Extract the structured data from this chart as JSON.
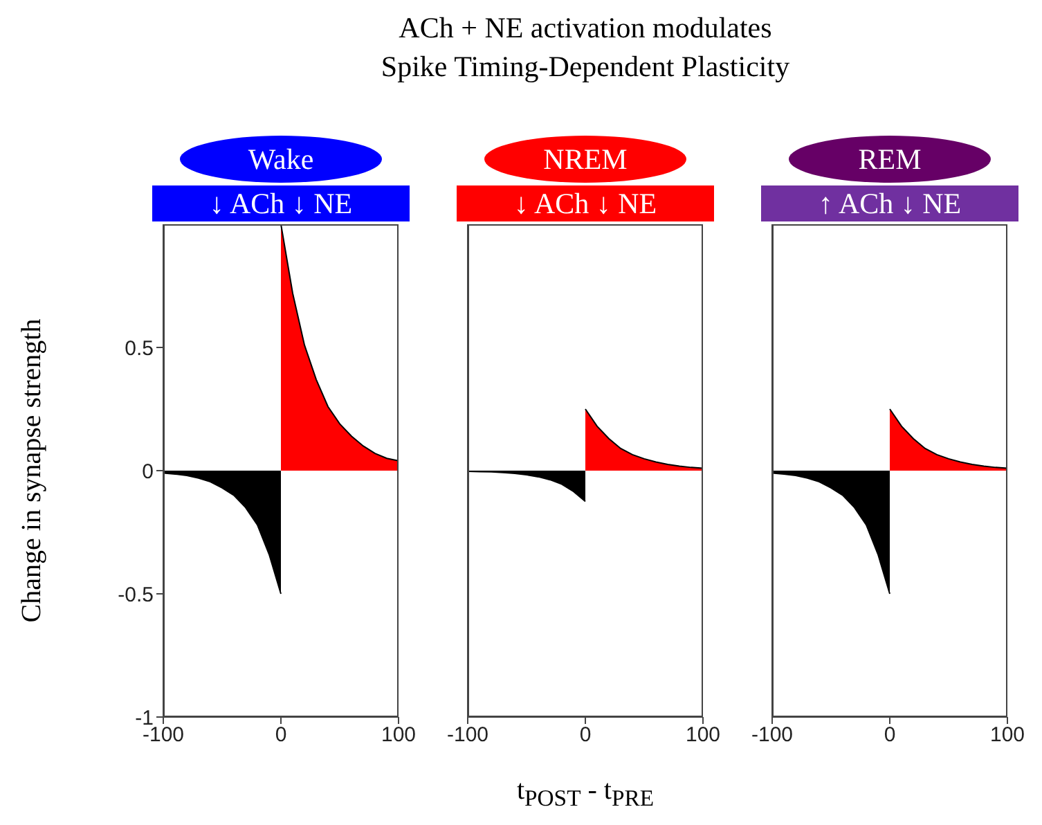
{
  "chart_data": [
    {
      "type": "area",
      "title": "Wake",
      "subtitle": "↓ ACh ↓ NE",
      "ylabel": "Change in synapse strength",
      "annotations": [
        "ACh + NE activation modulates",
        "Spike Timing-Dependent Plasticity"
      ],
      "xlim": [
        -100,
        100
      ],
      "xticks": [
        -100,
        0,
        100
      ],
      "ylim": [
        -1,
        1
      ],
      "yticks": [
        -1,
        -0.5,
        0,
        0.5
      ],
      "series": [
        {
          "color": "#ff0000",
          "x": [
            0,
            10,
            20,
            30,
            40,
            50,
            60,
            70,
            80,
            90,
            100
          ],
          "values": [
            1,
            0.72,
            0.51,
            0.37,
            0.26,
            0.19,
            0.14,
            0.1,
            0.07,
            0.05,
            0.04
          ]
        },
        {
          "color": "#000000",
          "x": [
            -100,
            -90,
            -80,
            -70,
            -60,
            -50,
            -40,
            -30,
            -20,
            -10,
            0
          ],
          "values": [
            -0.01,
            -0.014,
            -0.02,
            -0.03,
            -0.045,
            -0.07,
            -0.1,
            -0.15,
            -0.22,
            -0.34,
            -0.5
          ]
        }
      ]
    },
    {
      "type": "area",
      "title": "NREM",
      "subtitle": "↓ ACh ↓ NE",
      "xlabel": "t$_{POST}$ - t$_{PRE}$",
      "tick_labels": "x",
      "xlim": [
        -100,
        100
      ],
      "xticks": [
        -100,
        0,
        100
      ],
      "ylim": [
        -1,
        1
      ],
      "yticks": [
        -1,
        -0.5,
        0,
        0.5
      ],
      "series": [
        {
          "color": "#ff0000",
          "x": [
            0,
            10,
            20,
            30,
            40,
            50,
            60,
            70,
            80,
            90,
            100
          ],
          "values": [
            0.25,
            0.18,
            0.13,
            0.09,
            0.065,
            0.048,
            0.035,
            0.025,
            0.018,
            0.013,
            0.01
          ]
        },
        {
          "color": "#000000",
          "x": [
            -100,
            -90,
            -80,
            -70,
            -60,
            -50,
            -40,
            -30,
            -20,
            -10,
            0
          ],
          "values": [
            -0.003,
            -0.004,
            -0.005,
            -0.008,
            -0.011,
            -0.017,
            -0.025,
            -0.037,
            -0.055,
            -0.085,
            -0.125
          ]
        }
      ]
    },
    {
      "type": "area",
      "title": "REM",
      "subtitle": "↑ ACh ↓ NE",
      "tick_labels": "x",
      "xlim": [
        -100,
        100
      ],
      "xticks": [
        -100,
        0,
        100
      ],
      "ylim": [
        -1,
        1
      ],
      "yticks": [
        -1,
        -0.5,
        0,
        0.5
      ],
      "series": [
        {
          "color": "#ff0000",
          "x": [
            0,
            10,
            20,
            30,
            40,
            50,
            60,
            70,
            80,
            90,
            100
          ],
          "values": [
            0.25,
            0.18,
            0.13,
            0.09,
            0.065,
            0.048,
            0.035,
            0.025,
            0.018,
            0.013,
            0.01
          ]
        },
        {
          "color": "#000000",
          "x": [
            -100,
            -90,
            -80,
            -70,
            -60,
            -50,
            -40,
            -30,
            -20,
            -10,
            0
          ],
          "values": [
            -0.01,
            -0.014,
            -0.02,
            -0.03,
            -0.045,
            -0.07,
            -0.1,
            -0.15,
            -0.22,
            -0.34,
            -0.5
          ]
        }
      ]
    }
  ]
}
